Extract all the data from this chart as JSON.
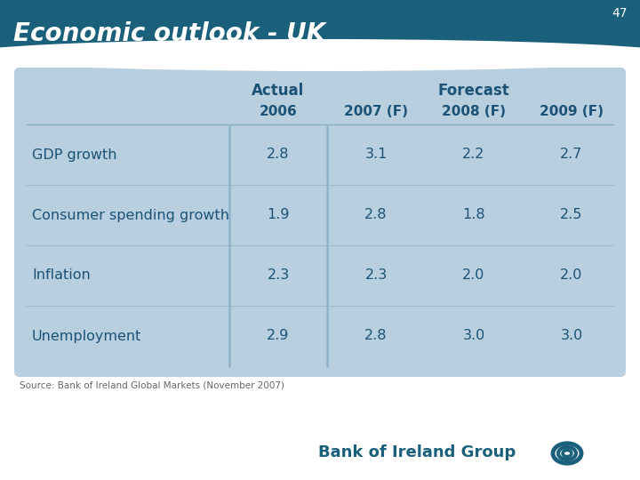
{
  "title": "Economic outlook - UK",
  "page_number": "47",
  "header_bg": "#1b607b",
  "header_text_color": "#ffffff",
  "table_bg": "#b8cfe0",
  "table_text_color": "#1b5276",
  "separator_color": "#8aafc8",
  "actual_label": "Actual",
  "forecast_label": "Forecast",
  "col_headers": [
    "2006",
    "2007 (F)",
    "2008 (F)",
    "2009 (F)"
  ],
  "row_labels": [
    "GDP growth",
    "Consumer spending growth",
    "Inflation",
    "Unemployment"
  ],
  "data": [
    [
      "2.8",
      "3.1",
      "2.2",
      "2.7"
    ],
    [
      "1.9",
      "2.8",
      "1.8",
      "2.5"
    ],
    [
      "2.3",
      "2.3",
      "2.0",
      "2.0"
    ],
    [
      "2.9",
      "2.8",
      "3.0",
      "3.0"
    ]
  ],
  "source_text": "Source: Bank of Ireland Global Markets (November 2007)",
  "footer_text": "Bank of Ireland Group",
  "background_color": "#ffffff"
}
